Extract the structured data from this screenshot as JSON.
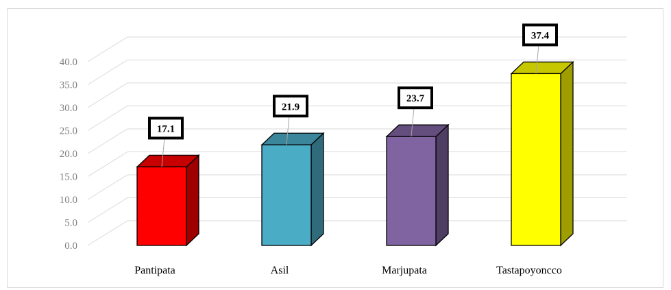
{
  "chart_data": {
    "type": "bar",
    "style": "3d-column",
    "categories": [
      "Pantipata",
      "Asil",
      "Marjupata",
      "Tastapoyoncco"
    ],
    "values": [
      17.1,
      21.9,
      23.7,
      37.4
    ],
    "data_labels": [
      "17.1",
      "21.9",
      "23.7",
      "37.4"
    ],
    "colors": [
      "#ff0000",
      "#4bacc6",
      "#8064a2",
      "#ffff00"
    ],
    "ylim": [
      0,
      40
    ],
    "y_ticks": [
      "0.0",
      "5.0",
      "10.0",
      "15.0",
      "20.0",
      "25.0",
      "30.0",
      "35.0",
      "40.0"
    ],
    "grid": true,
    "legend": "none"
  }
}
